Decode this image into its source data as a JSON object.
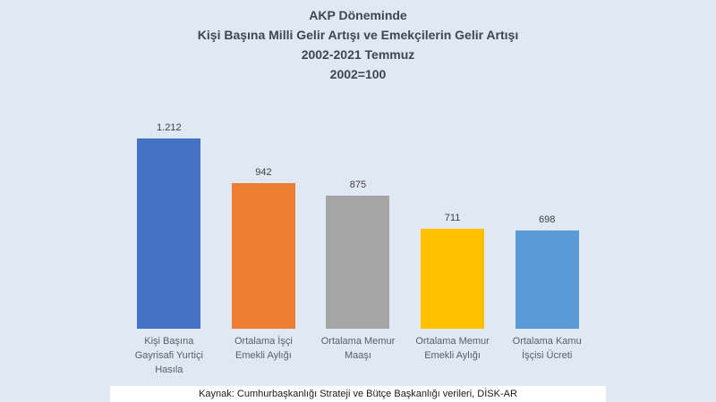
{
  "page": {
    "background_color": "#DFE8F3"
  },
  "chart_data": {
    "type": "bar",
    "title_lines": [
      "AKP Döneminde",
      "Kişi Başına Milli Gelir Artışı ve Emekçilerin Gelir Artışı",
      "2002-2021 Temmuz",
      "2002=100"
    ],
    "title": "AKP Döneminde Kişi Başına Milli Gelir Artışı ve Emekçilerin Gelir Artışı 2002-2021 Temmuz 2002=100",
    "categories": [
      [
        "Kişi Başına",
        "Gayrisafi Yurtiçi",
        "Hasıla"
      ],
      [
        "Ortalama İşçi",
        "Emekli Aylığı"
      ],
      [
        "Ortalama Memur",
        "Maaşı"
      ],
      [
        "Ortalama Memur",
        "Emekli Aylığı"
      ],
      [
        "Ortalama Kamu",
        "İşçisi Ücreti"
      ]
    ],
    "values": [
      1212,
      942,
      875,
      711,
      698
    ],
    "value_labels": [
      "1.212",
      "942",
      "875",
      "711",
      "698"
    ],
    "bar_colors": [
      "#4472C4",
      "#ED7D31",
      "#A5A5A5",
      "#FFC000",
      "#5B9BD5"
    ],
    "xlabel": "",
    "ylabel": "",
    "ylim": [
      200,
      1250
    ],
    "grid": false,
    "axes_visible": false,
    "legend_position": "none"
  },
  "source": {
    "text": "Kaynak: Cumhurbaşkanlığı Strateji ve Bütçe Başkanlığı verileri, DİSK-AR"
  }
}
